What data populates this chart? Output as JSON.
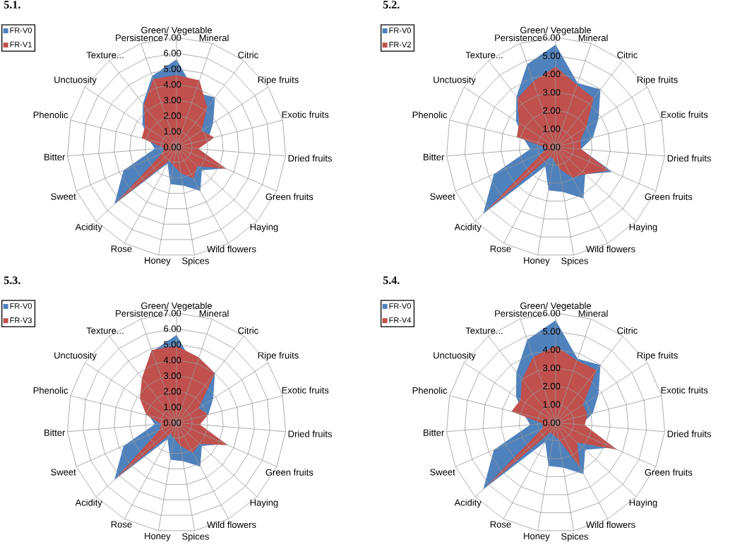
{
  "chart_data": [
    {
      "type": "radar",
      "title": "5.1.",
      "categories": [
        "Green/ Vegetable",
        "Mineral",
        "Citric",
        "Ripe fruits",
        "Exotic fruits",
        "Dried fruits",
        "Green fruits",
        "Haying",
        "Wild flowers",
        "Spices",
        "Honey",
        "Rose",
        "Acidity",
        "Sweet",
        "Bitter",
        "Phenolic",
        "Unctuosity",
        "Texture...",
        "Persistence"
      ],
      "series": [
        {
          "name": "FR-V0",
          "color": "#4f81bd",
          "values": [
            5.6,
            3.7,
            4.0,
            2.8,
            2.1,
            1.4,
            3.4,
            2.2,
            3.2,
            2.5,
            2.4,
            1.2,
            5.4,
            3.7,
            1.4,
            1.8,
            2.6,
            3.5,
            4.8
          ]
        },
        {
          "name": "FR-V1",
          "color": "#c0504d",
          "values": [
            4.6,
            4.5,
            3.2,
            1.9,
            2.5,
            1.4,
            3.5,
            1.8,
            2.3,
            1.7,
            1.2,
            1.0,
            5.3,
            1.0,
            0.8,
            2.3,
            2.4,
            3.4,
            4.6
          ]
        }
      ],
      "ylim": [
        0,
        7
      ],
      "yticks": [
        {
          "value": 0,
          "label": "0.00"
        },
        {
          "value": 1,
          "label": "1.00"
        },
        {
          "value": 2,
          "label": "2.00"
        },
        {
          "value": 3,
          "label": "3.00"
        },
        {
          "value": 4,
          "label": "4.00"
        },
        {
          "value": 5,
          "label": "5.00"
        },
        {
          "value": 6,
          "label": "6.00"
        },
        {
          "value": 7,
          "label": "7.00"
        }
      ],
      "grid": true,
      "legend": "top left"
    },
    {
      "type": "radar",
      "title": "5.2.",
      "categories": [
        "Green/ Vegetable",
        "Mineral",
        "Citric",
        "Ripe fruits",
        "Exotic fruits",
        "Dried fruits",
        "Green fruits",
        "Haying",
        "Wild flowers",
        "Spices",
        "Honey",
        "Rose",
        "Acidity",
        "Sweet",
        "Bitter",
        "Phenolic",
        "Unctuosity",
        "Texture...",
        "Persistence"
      ],
      "series": [
        {
          "name": "FR-V0",
          "color": "#4f81bd",
          "values": [
            5.6,
            3.7,
            4.0,
            2.8,
            2.1,
            1.4,
            3.4,
            2.2,
            3.2,
            2.5,
            2.4,
            1.2,
            5.4,
            3.7,
            1.4,
            1.8,
            2.6,
            3.5,
            4.8
          ]
        },
        {
          "name": "FR-V2",
          "color": "#c0504d",
          "values": [
            4.4,
            3.6,
            3.4,
            2.0,
            1.4,
            1.4,
            3.2,
            2.2,
            1.9,
            1.2,
            0.7,
            0.6,
            5.3,
            0.8,
            0.5,
            2.2,
            2.4,
            3.4,
            3.8
          ]
        }
      ],
      "ylim": [
        0,
        6
      ],
      "yticks": [
        {
          "value": 0,
          "label": "0.00"
        },
        {
          "value": 1,
          "label": "1.00"
        },
        {
          "value": 2,
          "label": "2.00"
        },
        {
          "value": 3,
          "label": "3.00"
        },
        {
          "value": 4,
          "label": "4.00"
        },
        {
          "value": 5,
          "label": "5.00"
        },
        {
          "value": 6,
          "label": "6.00"
        }
      ],
      "grid": true,
      "legend": "top left"
    },
    {
      "type": "radar",
      "title": "5.3.",
      "categories": [
        "Green/ Vegetable",
        "Mineral",
        "Citric",
        "Ripe fruits",
        "Exotic fruits",
        "Dried fruits",
        "Green fruits",
        "Haying",
        "Wild flowers",
        "Spices",
        "Honey",
        "Rose",
        "Acidity",
        "Sweet",
        "Bitter",
        "Phenolic",
        "Unctuosity",
        "Texture...",
        "Persistence"
      ],
      "series": [
        {
          "name": "FR-V0",
          "color": "#4f81bd",
          "values": [
            5.6,
            3.7,
            4.0,
            2.8,
            2.1,
            1.4,
            3.4,
            2.2,
            3.2,
            2.5,
            2.4,
            1.2,
            5.4,
            3.7,
            1.4,
            1.8,
            2.6,
            3.5,
            4.8
          ]
        },
        {
          "name": "FR-V3",
          "color": "#c0504d",
          "values": [
            4.9,
            4.4,
            4.0,
            1.7,
            2.1,
            1.5,
            3.6,
            2.0,
            2.2,
            1.5,
            1.0,
            0.8,
            5.3,
            1.2,
            1.0,
            2.0,
            2.8,
            3.6,
            4.9
          ]
        }
      ],
      "ylim": [
        0,
        7
      ],
      "yticks": [
        {
          "value": 0,
          "label": "0.00"
        },
        {
          "value": 1,
          "label": "1.00"
        },
        {
          "value": 2,
          "label": "2.00"
        },
        {
          "value": 3,
          "label": "3.00"
        },
        {
          "value": 4,
          "label": "4.00"
        },
        {
          "value": 5,
          "label": "5.00"
        },
        {
          "value": 6,
          "label": "6.00"
        },
        {
          "value": 7,
          "label": "7.00"
        }
      ],
      "grid": true,
      "legend": "top left"
    },
    {
      "type": "radar",
      "title": "5.4.",
      "categories": [
        "Green/ Vegetable",
        "Mineral",
        "Citric",
        "Ripe fruits",
        "Exotic fruits",
        "Dried fruits",
        "Green fruits",
        "Haying",
        "Wild flowers",
        "Spices",
        "Honey",
        "Rose",
        "Acidity",
        "Sweet",
        "Bitter",
        "Phenolic",
        "Unctuosity",
        "Texture...",
        "Persistence"
      ],
      "series": [
        {
          "name": "FR-V0",
          "color": "#4f81bd",
          "values": [
            5.6,
            3.7,
            4.0,
            2.8,
            2.1,
            1.4,
            3.4,
            2.2,
            3.2,
            2.5,
            2.4,
            1.2,
            5.4,
            3.7,
            1.4,
            1.8,
            2.6,
            3.5,
            4.8
          ]
        },
        {
          "name": "FR-V4",
          "color": "#c0504d",
          "values": [
            4.2,
            3.6,
            3.65,
            1.8,
            1.8,
            1.6,
            3.7,
            1.6,
            2.8,
            0.9,
            0.7,
            0.6,
            5.3,
            0.8,
            0.7,
            2.5,
            2.3,
            3.0,
            3.8
          ]
        }
      ],
      "ylim": [
        0,
        6
      ],
      "yticks": [
        {
          "value": 0,
          "label": "0.00"
        },
        {
          "value": 1,
          "label": "1.00"
        },
        {
          "value": 2,
          "label": "2.00"
        },
        {
          "value": 3,
          "label": "3.00"
        },
        {
          "value": 4,
          "label": "4.00"
        },
        {
          "value": 5,
          "label": "5.00"
        },
        {
          "value": 6,
          "label": "6.00"
        }
      ],
      "grid": true,
      "legend": "top left"
    }
  ]
}
